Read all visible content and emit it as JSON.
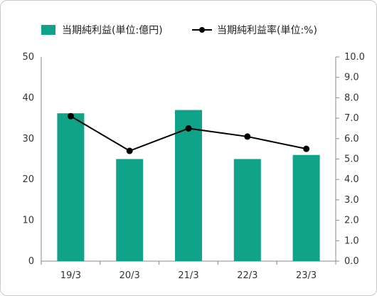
{
  "chart_data": {
    "type": "bar",
    "categories": [
      "19/3",
      "20/3",
      "21/3",
      "22/3",
      "23/3"
    ],
    "series": [
      {
        "name": "当期純利益(単位:億円)",
        "type": "bar",
        "axis": "left",
        "values": [
          36.2,
          25.0,
          37.0,
          25.0,
          26.0
        ],
        "color": "#0fa38a"
      },
      {
        "name": "当期純利益率(単位:%)",
        "type": "line",
        "axis": "right",
        "values": [
          7.1,
          5.4,
          6.5,
          6.1,
          5.5
        ],
        "color": "#000000"
      }
    ],
    "y_left": {
      "ylim": [
        0,
        50
      ],
      "ticks": [
        "0",
        "10",
        "20",
        "30",
        "40",
        "50"
      ]
    },
    "y_right": {
      "ylim": [
        0,
        10
      ],
      "ticks": [
        "0.0",
        "1.0",
        "2.0",
        "3.0",
        "4.0",
        "5.0",
        "6.0",
        "7.0",
        "8.0",
        "9.0",
        "10.0"
      ]
    },
    "x_tick_labels": [
      "19/3",
      "20/3",
      "21/3",
      "22/3",
      "23/3"
    ],
    "legend": {
      "position": "top",
      "items": [
        "当期純利益(単位:億円)",
        "当期純利益率(単位:%)"
      ]
    },
    "grid": false
  }
}
